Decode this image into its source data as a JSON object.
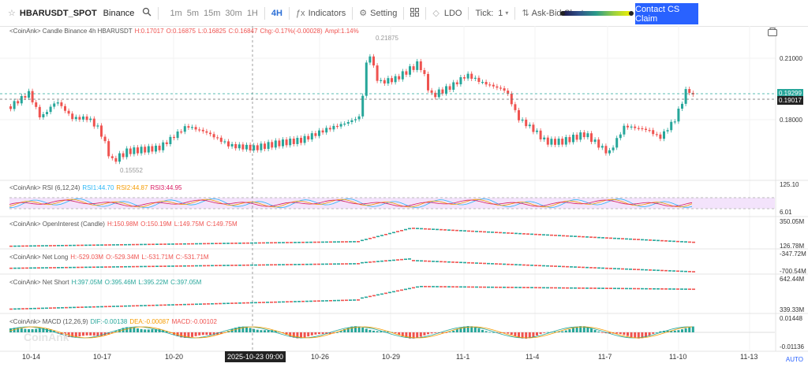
{
  "toolbar": {
    "symbol": "HBARUSDT_SPOT",
    "exchange": "Binance",
    "timeframes": [
      "1m",
      "5m",
      "15m",
      "30m",
      "1H",
      "4H"
    ],
    "active_timeframe": "4H",
    "indicators": "Indicators",
    "setting": "Setting",
    "ldo": "LDO",
    "tick_label": "Tick:",
    "tick_value": "1",
    "ask_bid": "Ask-Bid Cluster",
    "contact": "Contact CS Claim"
  },
  "legends": {
    "candle": "<CoinAnk> Candle  Binance 4h HBARUSDT",
    "candle_h": "H:0.17017",
    "candle_o": "O:0.16875",
    "candle_l": "L:0.16825",
    "candle_c": "C:0.16847",
    "candle_chg": "Chg:-0.17%(-0.00028)",
    "candle_ampl": "Ampl:1.14%",
    "rsi": "<CoinAnk> RSI (6,12,24)",
    "rsi1": "RSI1:44.70",
    "rsi2": "RSI2:44.87",
    "rsi3": "RSI3:44.95",
    "oi": "<CoinAnk> OpenInterest (Candle)",
    "oi_h": "H:150.98M",
    "oi_o": "O:150.19M",
    "oi_l": "L:149.75M",
    "oi_c": "C:149.75M",
    "nl": "<CoinAnk> Net Long",
    "nl_h": "H:-529.03M",
    "nl_o": "O:-529.34M",
    "nl_l": "L:-531.71M",
    "nl_c": "C:-531.71M",
    "ns": "<CoinAnk> Net Short",
    "ns_h": "H:397.05M",
    "ns_o": "O:395.46M",
    "ns_l": "L:395.22M",
    "ns_c": "C:397.05M",
    "macd": "<CoinAnk> MACD (12,26,9)",
    "dif": "DIF:-0.00138",
    "dea": "DEA:-0.00087",
    "macdv": "MACD:-0.00102"
  },
  "axis": {
    "p1": "0.21000",
    "p2": "0.18000",
    "tag_green": "0.19299",
    "tag_black": "0.19017",
    "hi_label": "0.21875",
    "lo_label": "0.15552",
    "rsi_top": "125.10",
    "rsi_bot": "6.01",
    "oi_top": "350.05M",
    "oi_bot": "126.78M",
    "nl_top": "-347.72M",
    "nl_bot": "-700.54M",
    "ns_top": "642.44M",
    "ns_bot": "339.33M",
    "macd_top": "0.01448",
    "macd_bot": "-0.01136",
    "auto": "AUTO"
  },
  "xaxis": {
    "labels": [
      "10-14",
      "10-17",
      "10-20",
      "10-26",
      "10-29",
      "11-1",
      "11-4",
      "11-7",
      "11-10",
      "11-13"
    ],
    "crosshair": "2025-10-23 09:00"
  },
  "watermark": "CoinAnk",
  "colors": {
    "up": "#26a69a",
    "down": "#ef5350",
    "accent": "#2962ff"
  }
}
